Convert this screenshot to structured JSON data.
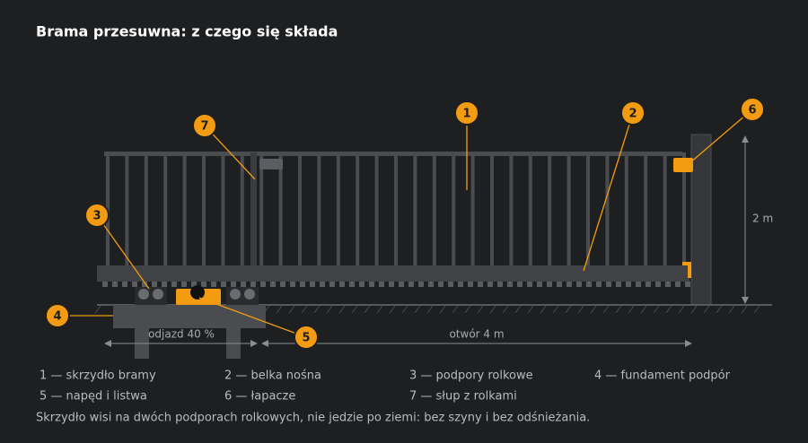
{
  "header": {
    "title": "Brama przesuwna: z czego się składa"
  },
  "callouts": [
    "1",
    "2",
    "3",
    "4",
    "5",
    "6",
    "7"
  ],
  "dimensions": {
    "height": "2 m",
    "offset": "odjazd 40 %",
    "opening": "otwór 4 m"
  },
  "legend": [
    "1 — skrzydło bramy",
    "2 — belka nośna",
    "3 — podpory rolkowe",
    "4 — fundament podpór",
    "5 — napęd i listwa",
    "6 — łapacze",
    "7 — słup z rolkami"
  ],
  "footnote": "Skrzydło wisi na dwóch podporach rolkowych, nie jedzie po ziemi: bez szyny i bez odśnieżania."
}
